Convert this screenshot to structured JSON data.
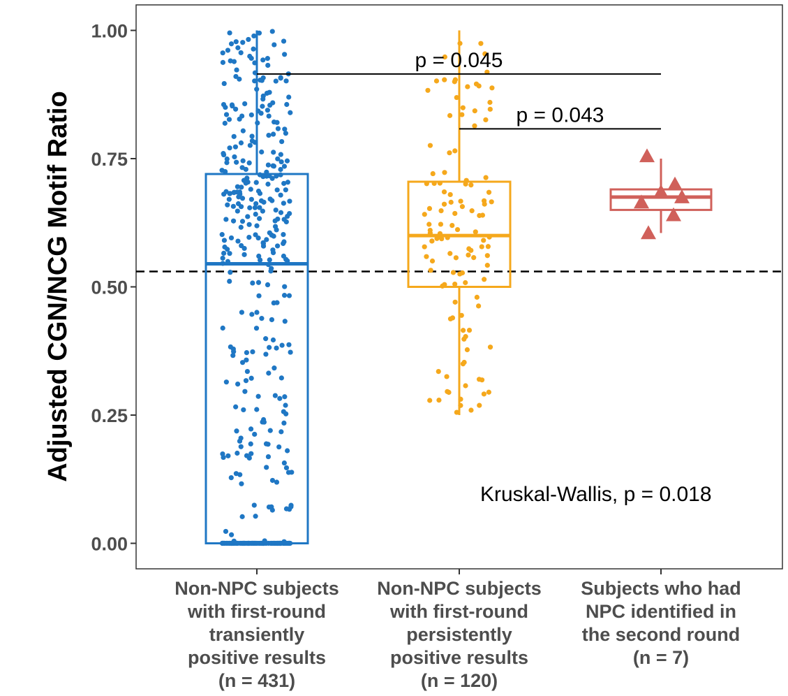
{
  "chart_data": {
    "type": "box-jitter",
    "ylabel": "Adjusted CGN/NCG Motif Ratio",
    "xlabel": "",
    "ylim": [
      -0.05,
      1.05
    ],
    "yticks": [
      0.0,
      0.25,
      0.5,
      0.75,
      1.0
    ],
    "ytick_labels": [
      "0.00",
      "0.25",
      "0.50",
      "0.75",
      "1.00"
    ],
    "grid": false,
    "reference_line": {
      "y": 0.53,
      "style": "dashed",
      "color": "#000000"
    },
    "groups": [
      {
        "name": "transient",
        "label_lines": [
          "Non-NPC subjects",
          "with first-round",
          "transiently",
          "positive results",
          "(n = 431)"
        ],
        "n": 431,
        "color": "#1f77c4",
        "marker": "circle",
        "box": {
          "min": 0.0,
          "q1": 0.0,
          "median": 0.545,
          "q3": 0.72,
          "max": 1.0
        }
      },
      {
        "name": "persistent",
        "label_lines": [
          "Non-NPC subjects",
          "with first-round",
          "persistently",
          "positive results",
          "(n = 120)"
        ],
        "n": 120,
        "color": "#f5a81c",
        "marker": "circle",
        "box": {
          "min": 0.25,
          "q1": 0.5,
          "median": 0.6,
          "q3": 0.705,
          "max": 1.0
        }
      },
      {
        "name": "npc",
        "label_lines": [
          "Subjects who had",
          "NPC identified in",
          "the second round",
          "(n = 7)"
        ],
        "n": 7,
        "color": "#d0605a",
        "marker": "triangle",
        "box": {
          "min": 0.605,
          "q1": 0.65,
          "median": 0.675,
          "q3": 0.69,
          "max": 0.75
        },
        "points": [
          0.755,
          0.7,
          0.685,
          0.675,
          0.665,
          0.64,
          0.605
        ]
      }
    ],
    "comparisons": [
      {
        "from": "transient",
        "to": "npc",
        "y": 0.915,
        "label": "p = 0.045"
      },
      {
        "from": "persistent",
        "to": "npc",
        "y": 0.808,
        "label": "p = 0.043"
      }
    ],
    "overall_test": "Kruskal-Wallis, p = 0.018"
  }
}
